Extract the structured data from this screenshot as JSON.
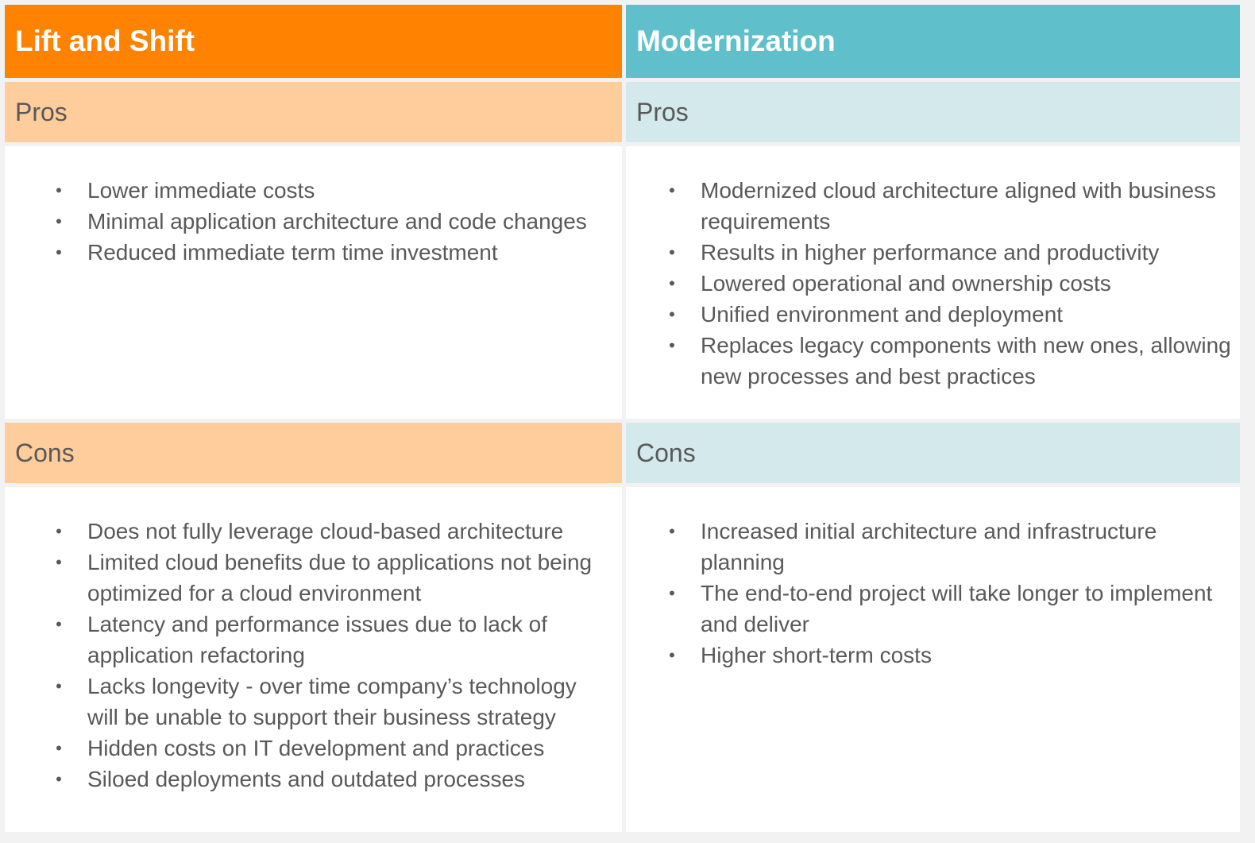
{
  "left": {
    "title": "Lift and Shift",
    "pros_label": "Pros",
    "pros": [
      "Lower immediate costs",
      "Minimal application architecture and code changes",
      "Reduced immediate term time investment"
    ],
    "cons_label": "Cons",
    "cons": [
      "Does not fully leverage cloud-based architecture",
      "Limited cloud benefits due to applications not being optimized for a cloud environment",
      "Latency and performance issues due to lack of application refactoring",
      "Lacks longevity - over time company’s technology will be unable to support their business strategy",
      "Hidden costs on IT development and practices",
      "Siloed deployments and outdated processes"
    ]
  },
  "right": {
    "title": "Modernization",
    "pros_label": "Pros",
    "pros": [
      "Modernized cloud architecture aligned with business requirements",
      "Results in higher performance and productivity",
      "Lowered operational and ownership costs",
      "Unified environment and deployment",
      "Replaces legacy components with new ones, allowing new processes and best practices"
    ],
    "cons_label": "Cons",
    "cons": [
      "Increased initial architecture and infrastructure planning",
      "The end-to-end project will take longer to implement and deliver",
      "Higher short-term costs"
    ]
  },
  "colors": {
    "left_header": "#ff8200",
    "left_subheader": "#ffcc9b",
    "right_header": "#5fc0cb",
    "right_subheader": "#d3e9ec",
    "text": "#595959",
    "border": "#f2f2f2"
  }
}
